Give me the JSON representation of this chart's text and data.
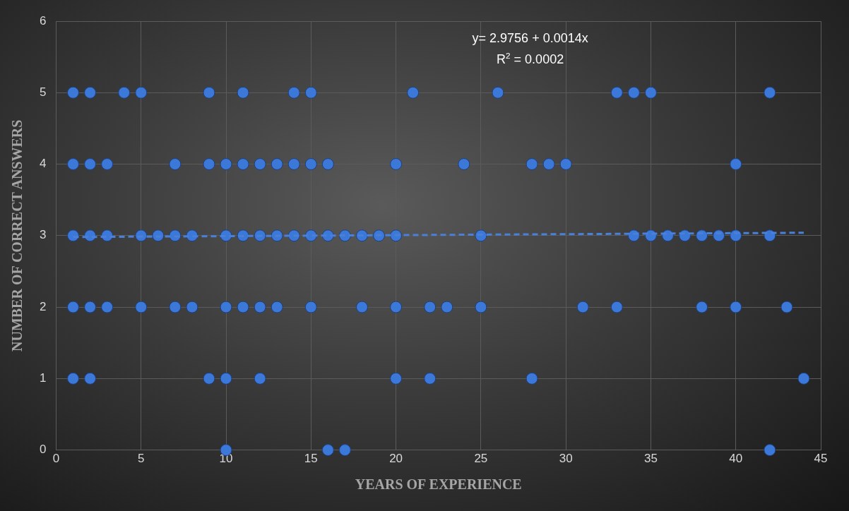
{
  "chart_data": {
    "type": "scatter",
    "xlabel": "YEARS OF EXPERIENCE",
    "ylabel": "NUMBER OF CORRECT ANSWERS",
    "annotations": [
      "y= 2.9756 + 0.0014x",
      "R$^{2}$ = 0.0002"
    ],
    "xlim": [
      0,
      45
    ],
    "xticks": [
      0,
      5,
      10,
      15,
      20,
      25,
      30,
      35,
      40,
      45
    ],
    "ylim": [
      0,
      6
    ],
    "yticks": [
      0,
      1,
      2,
      3,
      4,
      5,
      6
    ],
    "grid": true,
    "marker": "circle",
    "series": [
      {
        "type": "scatter",
        "color": "#3b78d8",
        "x": [
          1,
          2,
          4,
          5,
          9,
          11,
          14,
          15,
          21,
          26,
          33,
          34,
          35,
          42,
          1,
          2,
          3,
          7,
          9,
          10,
          11,
          12,
          13,
          14,
          15,
          16,
          20,
          24,
          28,
          29,
          30,
          40,
          1,
          2,
          3,
          5,
          6,
          7,
          8,
          10,
          11,
          12,
          13,
          14,
          15,
          16,
          17,
          18,
          19,
          20,
          25,
          34,
          35,
          36,
          37,
          38,
          39,
          40,
          42,
          1,
          2,
          3,
          5,
          7,
          8,
          10,
          11,
          12,
          13,
          15,
          18,
          20,
          22,
          23,
          25,
          31,
          33,
          38,
          40,
          43,
          1,
          2,
          9,
          10,
          12,
          20,
          22,
          28,
          44,
          10,
          16,
          17,
          42
        ],
        "values": [
          5,
          5,
          5,
          5,
          5,
          5,
          5,
          5,
          5,
          5,
          5,
          5,
          5,
          5,
          4,
          4,
          4,
          4,
          4,
          4,
          4,
          4,
          4,
          4,
          4,
          4,
          4,
          4,
          4,
          4,
          4,
          4,
          3,
          3,
          3,
          3,
          3,
          3,
          3,
          3,
          3,
          3,
          3,
          3,
          3,
          3,
          3,
          3,
          3,
          3,
          3,
          3,
          3,
          3,
          3,
          3,
          3,
          3,
          3,
          2,
          2,
          2,
          2,
          2,
          2,
          2,
          2,
          2,
          2,
          2,
          2,
          2,
          2,
          2,
          2,
          2,
          2,
          2,
          2,
          2,
          1,
          1,
          1,
          1,
          1,
          1,
          1,
          1,
          1,
          0,
          0,
          0,
          0
        ]
      },
      {
        "type": "line",
        "color": "#4a80d8",
        "line_style": "dashed",
        "marker": "none",
        "x": [
          1,
          44
        ],
        "values": [
          2.98,
          3.04
        ]
      }
    ]
  }
}
